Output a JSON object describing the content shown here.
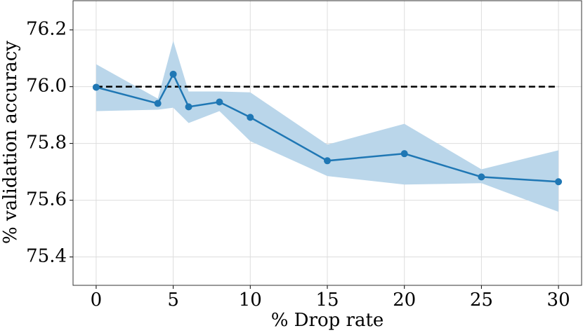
{
  "chart_data": {
    "type": "line",
    "x_label": "% Drop rate",
    "y_label": "% validation accuracy",
    "x": [
      0,
      4,
      5,
      6,
      8,
      10,
      15,
      20,
      25,
      30
    ],
    "series": [
      {
        "color": "#1f77b4",
        "band_color": "#bad6ea",
        "values": [
          75.998,
          75.941,
          76.044,
          75.929,
          75.946,
          75.892,
          75.739,
          75.764,
          75.682,
          75.665
        ],
        "upper": [
          76.079,
          75.958,
          76.162,
          75.983,
          75.983,
          75.98,
          75.796,
          75.869,
          75.709,
          75.776
        ],
        "lower": [
          75.914,
          75.919,
          75.926,
          75.872,
          75.914,
          75.808,
          75.685,
          75.655,
          75.66,
          75.559
        ]
      }
    ],
    "baseline": {
      "value": 76,
      "x": [
        0,
        30
      ],
      "color": "#000000"
    },
    "xlim": [
      -1.5,
      31.5
    ],
    "ylim": [
      75.3,
      76.303
    ],
    "xticks": [
      0,
      5,
      10,
      15,
      20,
      25,
      30
    ],
    "yticks": [
      75.4,
      75.6,
      75.8,
      {
        "value": 76,
        "label": "76.0"
      },
      76.2
    ],
    "grid": true
  }
}
